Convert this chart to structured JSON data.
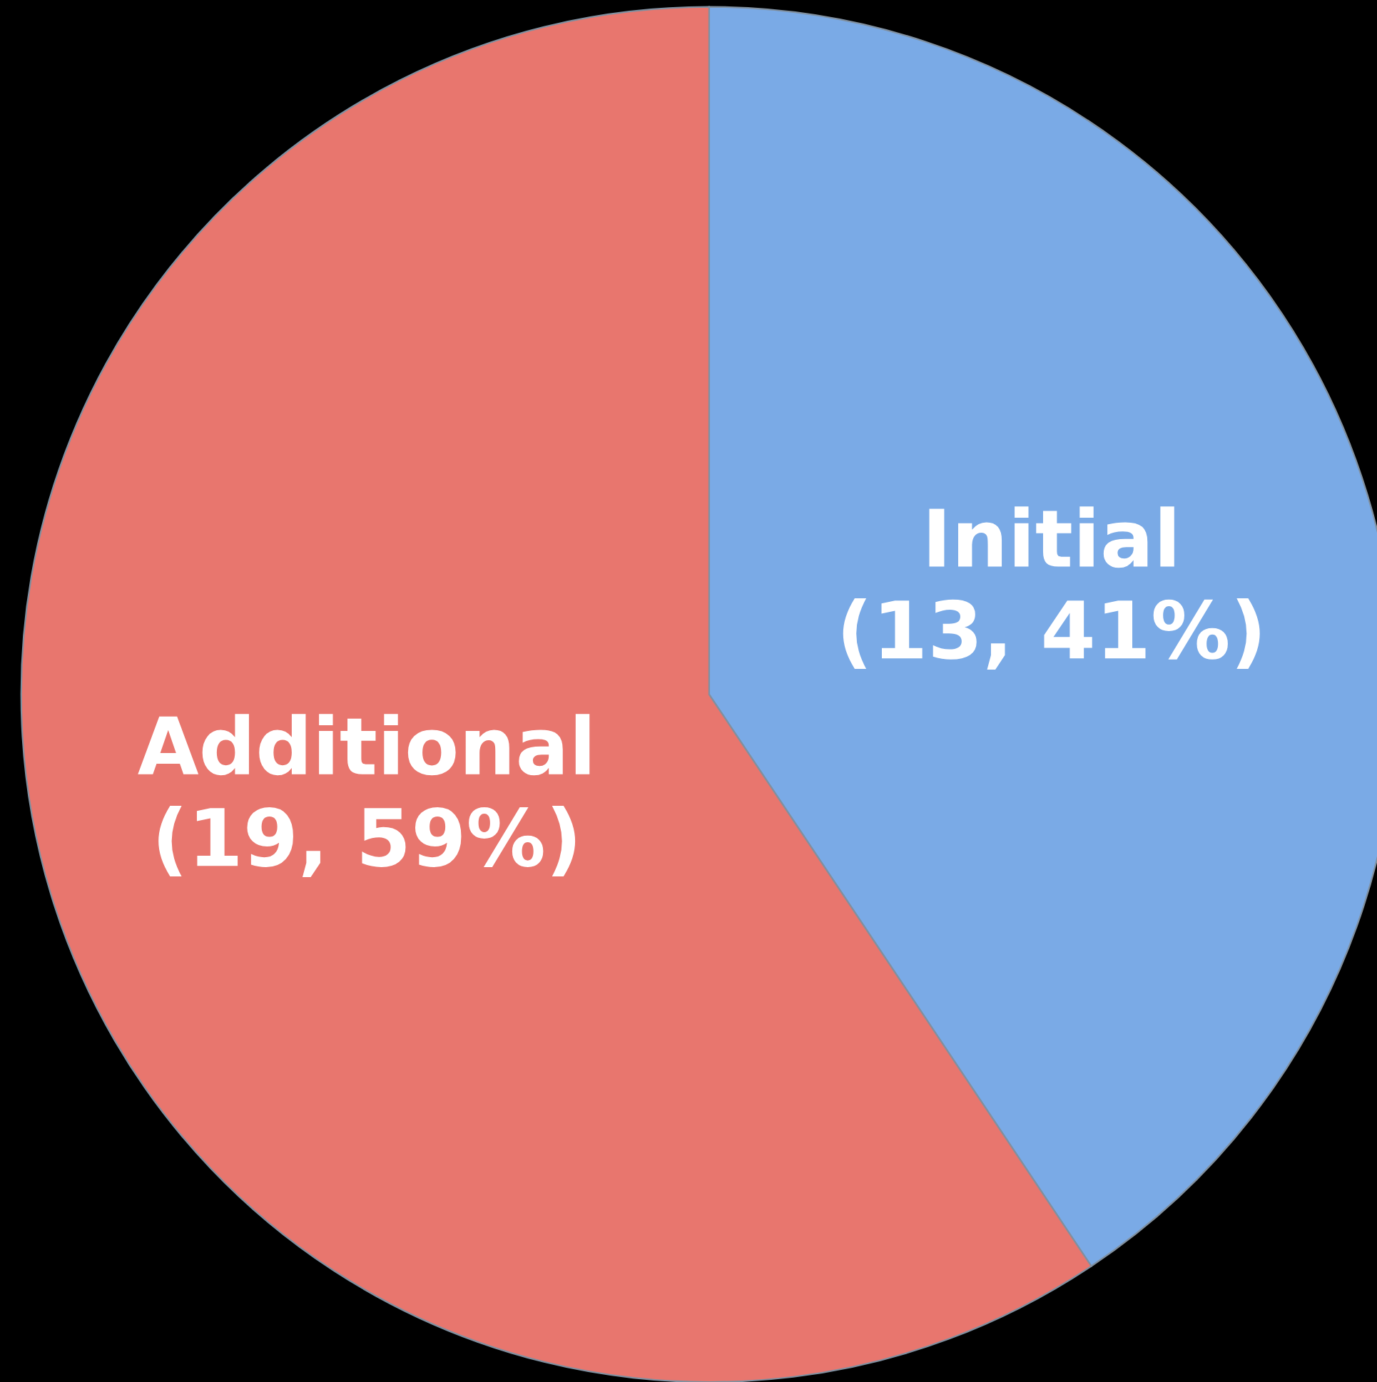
{
  "chart_data": {
    "type": "pie",
    "categories": [
      "Initial",
      "Additional"
    ],
    "values": [
      13,
      19
    ],
    "value_labels": [
      "(13, 41%)",
      "(19, 59%)"
    ],
    "colors": [
      "#7aaae6",
      "#e8766e"
    ],
    "legend": false
  }
}
